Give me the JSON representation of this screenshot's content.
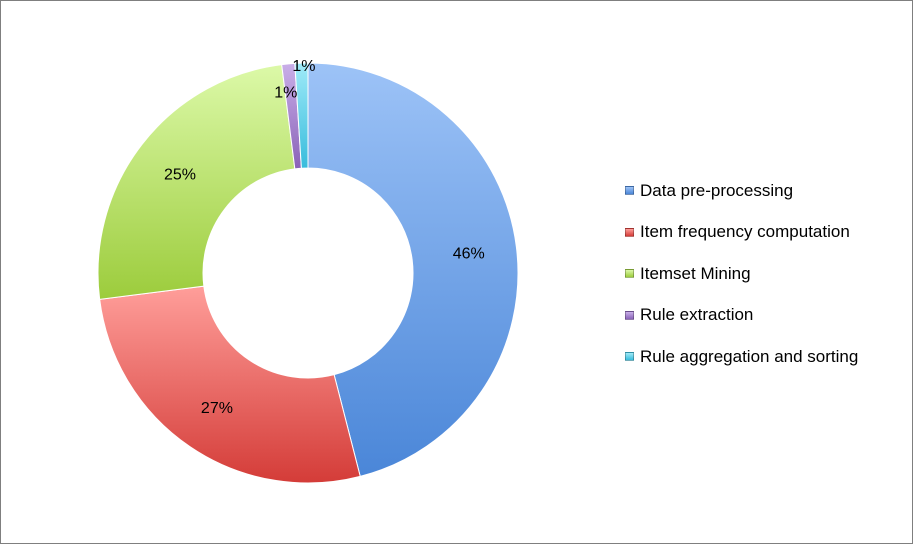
{
  "chart_data": {
    "type": "pie",
    "style": "donut",
    "title": "",
    "slices": [
      {
        "label": "Data pre-processing",
        "value": 46,
        "display": "46%",
        "color": "#4a86d8",
        "light": "#9dc3f7"
      },
      {
        "label": "Item frequency computation",
        "value": 27,
        "display": "27%",
        "color": "#d43c38",
        "light": "#ff9e9a"
      },
      {
        "label": "Itemset Mining",
        "value": 25,
        "display": "25%",
        "color": "#9ccc3c",
        "light": "#dcf9a8"
      },
      {
        "label": "Rule extraction",
        "value": 1,
        "display": "1%",
        "color": "#8a63b8",
        "light": "#c9aee8"
      },
      {
        "label": "Rule aggregation and sorting",
        "value": 1,
        "display": "1%",
        "color": "#38bcdc",
        "light": "#9feaf8"
      }
    ],
    "legend": {
      "position": "right"
    }
  }
}
